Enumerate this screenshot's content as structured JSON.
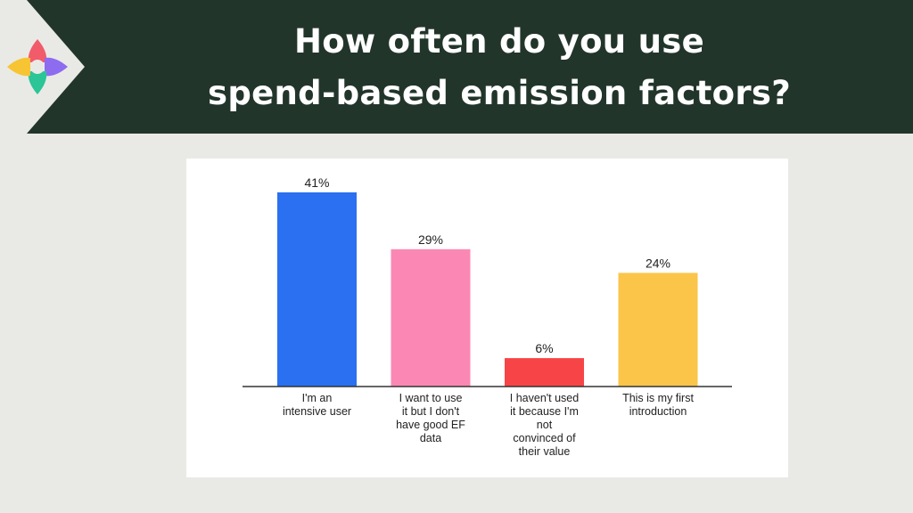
{
  "header": {
    "title_line1": "How often do you use",
    "title_line2": "spend-based emission factors?"
  },
  "logo": {
    "icon": "four-petal-logo-icon",
    "colors": [
      "#f25b6a",
      "#8e6cf0",
      "#2bc597",
      "#f7c433"
    ]
  },
  "chart_data": {
    "type": "bar",
    "categories": [
      [
        "I'm an",
        "intensive user"
      ],
      [
        "I want to use",
        "it but I don't",
        "have good EF",
        "data"
      ],
      [
        "I haven't used",
        "it because I'm",
        "not",
        "convinced of",
        "their value"
      ],
      [
        "This is my first",
        "introduction"
      ]
    ],
    "values": [
      41,
      29,
      6,
      24
    ],
    "value_labels": [
      "41%",
      "29%",
      "6%",
      "24%"
    ],
    "colors": [
      "#2a70f0",
      "#fb88b4",
      "#f74447",
      "#fbc54a"
    ],
    "ylim": [
      0,
      41
    ],
    "grid": false,
    "legend": "none"
  },
  "colors": {
    "banner": "#22352b",
    "background": "#e9eae6",
    "axis": "#333333"
  }
}
